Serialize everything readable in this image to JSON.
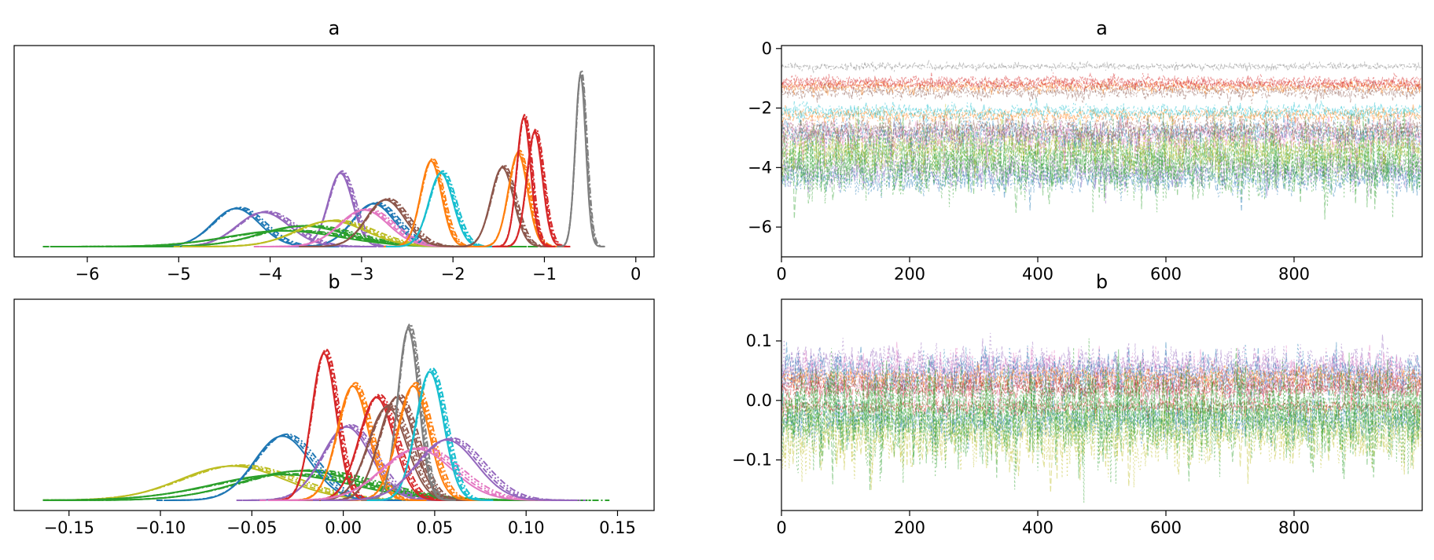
{
  "colors": [
    "#1f77b4",
    "#ff7f0e",
    "#2ca02c",
    "#d62728",
    "#9467bd",
    "#8c564b",
    "#e377c2",
    "#7f7f7f",
    "#bcbd22",
    "#17becf"
  ],
  "chart_data": [
    {
      "id": "a-density",
      "type": "line",
      "title": "a",
      "xlabel": "",
      "ylabel": "",
      "xlim": [
        -6.8,
        0.2
      ],
      "xticks": [
        -6,
        -5,
        -4,
        -3,
        -2,
        -1,
        0
      ],
      "xtick_labels": [
        "−6",
        "−5",
        "−4",
        "−3",
        "−2",
        "−1",
        "0"
      ],
      "grid": false,
      "series": [
        {
          "color": "#1f77b4",
          "mean": -4.35,
          "sd": 0.27
        },
        {
          "color": "#1f77b4",
          "mean": -2.85,
          "sd": 0.24
        },
        {
          "color": "#9467bd",
          "mean": -4.05,
          "sd": 0.3
        },
        {
          "color": "#9467bd",
          "mean": -3.22,
          "sd": 0.14
        },
        {
          "color": "#2ca02c",
          "mean": -3.6,
          "sd": 0.5
        },
        {
          "color": "#2ca02c",
          "mean": -3.8,
          "sd": 0.65
        },
        {
          "color": "#bcbd22",
          "mean": -3.3,
          "sd": 0.4
        },
        {
          "color": "#e377c2",
          "mean": -2.95,
          "sd": 0.28
        },
        {
          "color": "#8c564b",
          "mean": -2.72,
          "sd": 0.22
        },
        {
          "color": "#ff7f0e",
          "mean": -2.23,
          "sd": 0.12
        },
        {
          "color": "#17becf",
          "mean": -2.12,
          "sd": 0.14
        },
        {
          "color": "#8c564b",
          "mean": -1.45,
          "sd": 0.13
        },
        {
          "color": "#ff7f0e",
          "mean": -1.28,
          "sd": 0.11
        },
        {
          "color": "#d62728",
          "mean": -1.22,
          "sd": 0.08
        },
        {
          "color": "#d62728",
          "mean": -1.1,
          "sd": 0.09
        },
        {
          "color": "#7f7f7f",
          "mean": -0.6,
          "sd": 0.06
        }
      ]
    },
    {
      "id": "a-trace",
      "type": "line",
      "title": "a",
      "xlabel": "",
      "ylabel": "",
      "xlim": [
        0,
        1000
      ],
      "ylim": [
        -7,
        0.1
      ],
      "xticks": [
        0,
        200,
        400,
        600,
        800
      ],
      "xtick_labels": [
        "0",
        "200",
        "400",
        "600",
        "800"
      ],
      "yticks": [
        0,
        -2,
        -4,
        -6
      ],
      "ytick_labels": [
        "0",
        "−2",
        "−4",
        "−6"
      ],
      "draws": 1000,
      "grid": false,
      "series": [
        {
          "color": "#1f77b4",
          "mean": -4.35,
          "sd": 0.27
        },
        {
          "color": "#9467bd",
          "mean": -4.05,
          "sd": 0.3
        },
        {
          "color": "#2ca02c",
          "mean": -3.6,
          "sd": 0.5
        },
        {
          "color": "#2ca02c",
          "mean": -3.8,
          "sd": 0.65
        },
        {
          "color": "#bcbd22",
          "mean": -3.3,
          "sd": 0.4
        },
        {
          "color": "#1f77b4",
          "mean": -2.85,
          "sd": 0.24
        },
        {
          "color": "#e377c2",
          "mean": -2.95,
          "sd": 0.28
        },
        {
          "color": "#8c564b",
          "mean": -2.72,
          "sd": 0.22
        },
        {
          "color": "#ff7f0e",
          "mean": -2.23,
          "sd": 0.12
        },
        {
          "color": "#17becf",
          "mean": -2.12,
          "sd": 0.14
        },
        {
          "color": "#8c564b",
          "mean": -1.45,
          "sd": 0.13
        },
        {
          "color": "#ff7f0e",
          "mean": -1.28,
          "sd": 0.11
        },
        {
          "color": "#d62728",
          "mean": -1.22,
          "sd": 0.08
        },
        {
          "color": "#d62728",
          "mean": -1.1,
          "sd": 0.09
        },
        {
          "color": "#7f7f7f",
          "mean": -0.6,
          "sd": 0.06
        }
      ]
    },
    {
      "id": "b-density",
      "type": "line",
      "title": "b",
      "xlabel": "",
      "ylabel": "",
      "xlim": [
        -0.18,
        0.17
      ],
      "xticks": [
        -0.15,
        -0.1,
        -0.05,
        0.0,
        0.05,
        0.1,
        0.15
      ],
      "xtick_labels": [
        "−0.15",
        "−0.10",
        "−0.05",
        "0.00",
        "0.05",
        "0.10",
        "0.15"
      ],
      "grid": false,
      "series": [
        {
          "color": "#bcbd22",
          "mean": -0.058,
          "sd": 0.03
        },
        {
          "color": "#2ca02c",
          "mean": -0.02,
          "sd": 0.035
        },
        {
          "color": "#2ca02c",
          "mean": -0.03,
          "sd": 0.04
        },
        {
          "color": "#1f77b4",
          "mean": -0.032,
          "sd": 0.016
        },
        {
          "color": "#9467bd",
          "mean": 0.003,
          "sd": 0.014
        },
        {
          "color": "#d62728",
          "mean": -0.01,
          "sd": 0.007
        },
        {
          "color": "#ff7f0e",
          "mean": 0.006,
          "sd": 0.009
        },
        {
          "color": "#d62728",
          "mean": 0.019,
          "sd": 0.01
        },
        {
          "color": "#8c564b",
          "mean": 0.025,
          "sd": 0.011
        },
        {
          "color": "#8c564b",
          "mean": 0.03,
          "sd": 0.01
        },
        {
          "color": "#7f7f7f",
          "mean": 0.036,
          "sd": 0.006
        },
        {
          "color": "#ff7f0e",
          "mean": 0.039,
          "sd": 0.009
        },
        {
          "color": "#e377c2",
          "mean": 0.042,
          "sd": 0.02
        },
        {
          "color": "#17becf",
          "mean": 0.048,
          "sd": 0.008
        },
        {
          "color": "#9467bd",
          "mean": 0.058,
          "sd": 0.017
        }
      ]
    },
    {
      "id": "b-trace",
      "type": "line",
      "title": "b",
      "xlabel": "",
      "ylabel": "",
      "xlim": [
        0,
        1000
      ],
      "ylim": [
        -0.185,
        0.17
      ],
      "xticks": [
        0,
        200,
        400,
        600,
        800
      ],
      "xtick_labels": [
        "0",
        "200",
        "400",
        "600",
        "800"
      ],
      "yticks": [
        0.1,
        0.0,
        -0.1
      ],
      "ytick_labels": [
        "0.1",
        "0.0",
        "−0.1"
      ],
      "draws": 1000,
      "grid": false,
      "series": [
        {
          "color": "#bcbd22",
          "mean": -0.058,
          "sd": 0.03
        },
        {
          "color": "#1f77b4",
          "mean": -0.032,
          "sd": 0.016
        },
        {
          "color": "#9467bd",
          "mean": 0.058,
          "sd": 0.017
        },
        {
          "color": "#e377c2",
          "mean": 0.042,
          "sd": 0.02
        },
        {
          "color": "#1f77b4",
          "mean": 0.045,
          "sd": 0.018
        },
        {
          "color": "#8c564b",
          "mean": 0.025,
          "sd": 0.011
        },
        {
          "color": "#ff7f0e",
          "mean": 0.039,
          "sd": 0.009
        },
        {
          "color": "#d62728",
          "mean": 0.019,
          "sd": 0.01
        },
        {
          "color": "#d62728",
          "mean": -0.01,
          "sd": 0.007
        },
        {
          "color": "#2ca02c",
          "mean": -0.02,
          "sd": 0.035
        },
        {
          "color": "#2ca02c",
          "mean": -0.03,
          "sd": 0.04
        }
      ]
    }
  ]
}
